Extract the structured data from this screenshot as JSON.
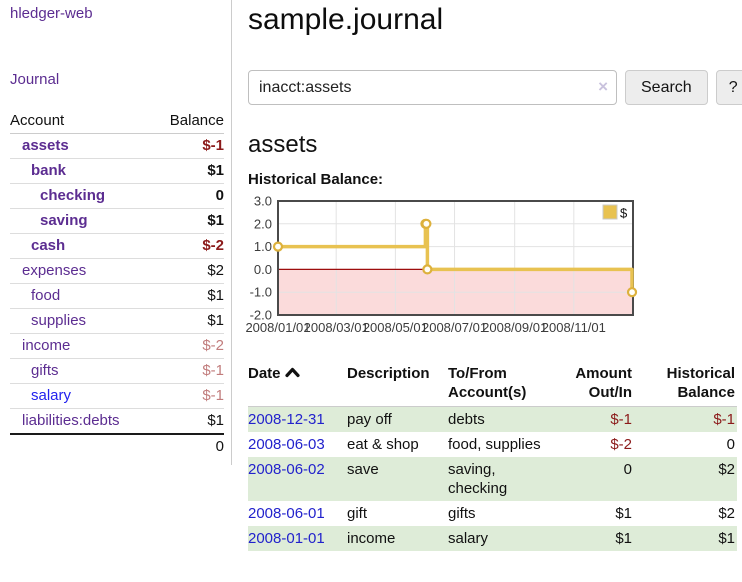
{
  "app": {
    "brand": "hledger-web",
    "nav_journal": "Journal"
  },
  "sidebar": {
    "header": {
      "account": "Account",
      "balance": "Balance"
    },
    "accounts": [
      {
        "label": "assets",
        "indent": 0,
        "balance": "$-1",
        "bold": true,
        "name_color": "purple",
        "balance_tone": "neg"
      },
      {
        "label": "bank",
        "indent": 1,
        "balance": "$1",
        "bold": true,
        "name_color": "purple",
        "balance_tone": "pos"
      },
      {
        "label": "checking",
        "indent": 2,
        "balance": "0",
        "bold": true,
        "name_color": "purple",
        "balance_tone": "pos"
      },
      {
        "label": "saving",
        "indent": 2,
        "balance": "$1",
        "bold": true,
        "name_color": "purple",
        "balance_tone": "pos"
      },
      {
        "label": "cash",
        "indent": 1,
        "balance": "$-2",
        "bold": true,
        "name_color": "purple",
        "balance_tone": "neg"
      },
      {
        "label": "expenses",
        "indent": 0,
        "balance": "$2",
        "bold": false,
        "name_color": "purple",
        "balance_tone": "pos"
      },
      {
        "label": "food",
        "indent": 1,
        "balance": "$1",
        "bold": false,
        "name_color": "purple",
        "balance_tone": "pos"
      },
      {
        "label": "supplies",
        "indent": 1,
        "balance": "$1",
        "bold": false,
        "name_color": "purple",
        "balance_tone": "pos"
      },
      {
        "label": "income",
        "indent": 0,
        "balance": "$-2",
        "bold": false,
        "name_color": "purple",
        "balance_tone": "dim"
      },
      {
        "label": "gifts",
        "indent": 1,
        "balance": "$-1",
        "bold": false,
        "name_color": "purple",
        "balance_tone": "dim"
      },
      {
        "label": "salary",
        "indent": 1,
        "balance": "$-1",
        "bold": false,
        "name_color": "blue",
        "balance_tone": "dim"
      },
      {
        "label": "liabilities:debts",
        "indent": 0,
        "balance": "$1",
        "bold": false,
        "name_color": "purple",
        "balance_tone": "pos"
      }
    ],
    "total": "0"
  },
  "header": {
    "title": "sample.journal"
  },
  "search": {
    "value": "inacct:assets",
    "clear_icon": "×",
    "search_label": "Search",
    "help_label": "?"
  },
  "account_page": {
    "heading": "assets",
    "chart_label": "Historical Balance:"
  },
  "chart_data": {
    "type": "line",
    "title": "Historical Balance:",
    "step": true,
    "series": [
      {
        "name": "$",
        "points": [
          [
            "2008-01-01",
            1
          ],
          [
            "2008-06-01",
            2
          ],
          [
            "2008-06-02",
            2
          ],
          [
            "2008-06-03",
            0
          ],
          [
            "2008-12-31",
            -1
          ]
        ]
      }
    ],
    "x_range": [
      "2008-01-01",
      "2009-01-01"
    ],
    "x_ticks": [
      "2008/01/01",
      "2008/03/01",
      "2008/05/01",
      "2008/07/01",
      "2008/09/01",
      "2008/11/01"
    ],
    "y_ticks": [
      3.0,
      2.0,
      1.0,
      0.0,
      -1.0,
      -2.0
    ],
    "ylim": [
      -2,
      3
    ],
    "grid": true,
    "legend": {
      "position": "top-right",
      "label": "$"
    },
    "colors": {
      "series": "#e8c251",
      "marker_ring": "#ddb13c",
      "negative_region": "#fbdbdb",
      "zero_line": "#9e0e0e",
      "plot_border": "#4a4a4a",
      "gridline": "#e3e3e3",
      "tick_text": "#3c3c3c"
    }
  },
  "register": {
    "columns": {
      "date": "Date",
      "description": "Description",
      "accounts": "To/From Account(s)",
      "amount": "Amount Out/In",
      "balance": "Historical Balance"
    },
    "rows": [
      {
        "date": "2008-12-31",
        "description": "pay off",
        "accounts": "debts",
        "amount": "$-1",
        "amount_tone": "neg",
        "balance": "$-1",
        "balance_tone": "neg",
        "shaded": true
      },
      {
        "date": "2008-06-03",
        "description": "eat & shop",
        "accounts": "food, supplies",
        "amount": "$-2",
        "amount_tone": "neg",
        "balance": "0",
        "balance_tone": "pos",
        "shaded": false
      },
      {
        "date": "2008-06-02",
        "description": "save",
        "accounts": "saving, checking",
        "amount": "0",
        "amount_tone": "pos",
        "balance": "$2",
        "balance_tone": "pos",
        "shaded": true
      },
      {
        "date": "2008-06-01",
        "description": "gift",
        "accounts": "gifts",
        "amount": "$1",
        "amount_tone": "pos",
        "balance": "$2",
        "balance_tone": "pos",
        "shaded": false
      },
      {
        "date": "2008-01-01",
        "description": "income",
        "accounts": "salary",
        "amount": "$1",
        "amount_tone": "pos",
        "balance": "$1",
        "balance_tone": "pos",
        "shaded": true
      }
    ]
  }
}
